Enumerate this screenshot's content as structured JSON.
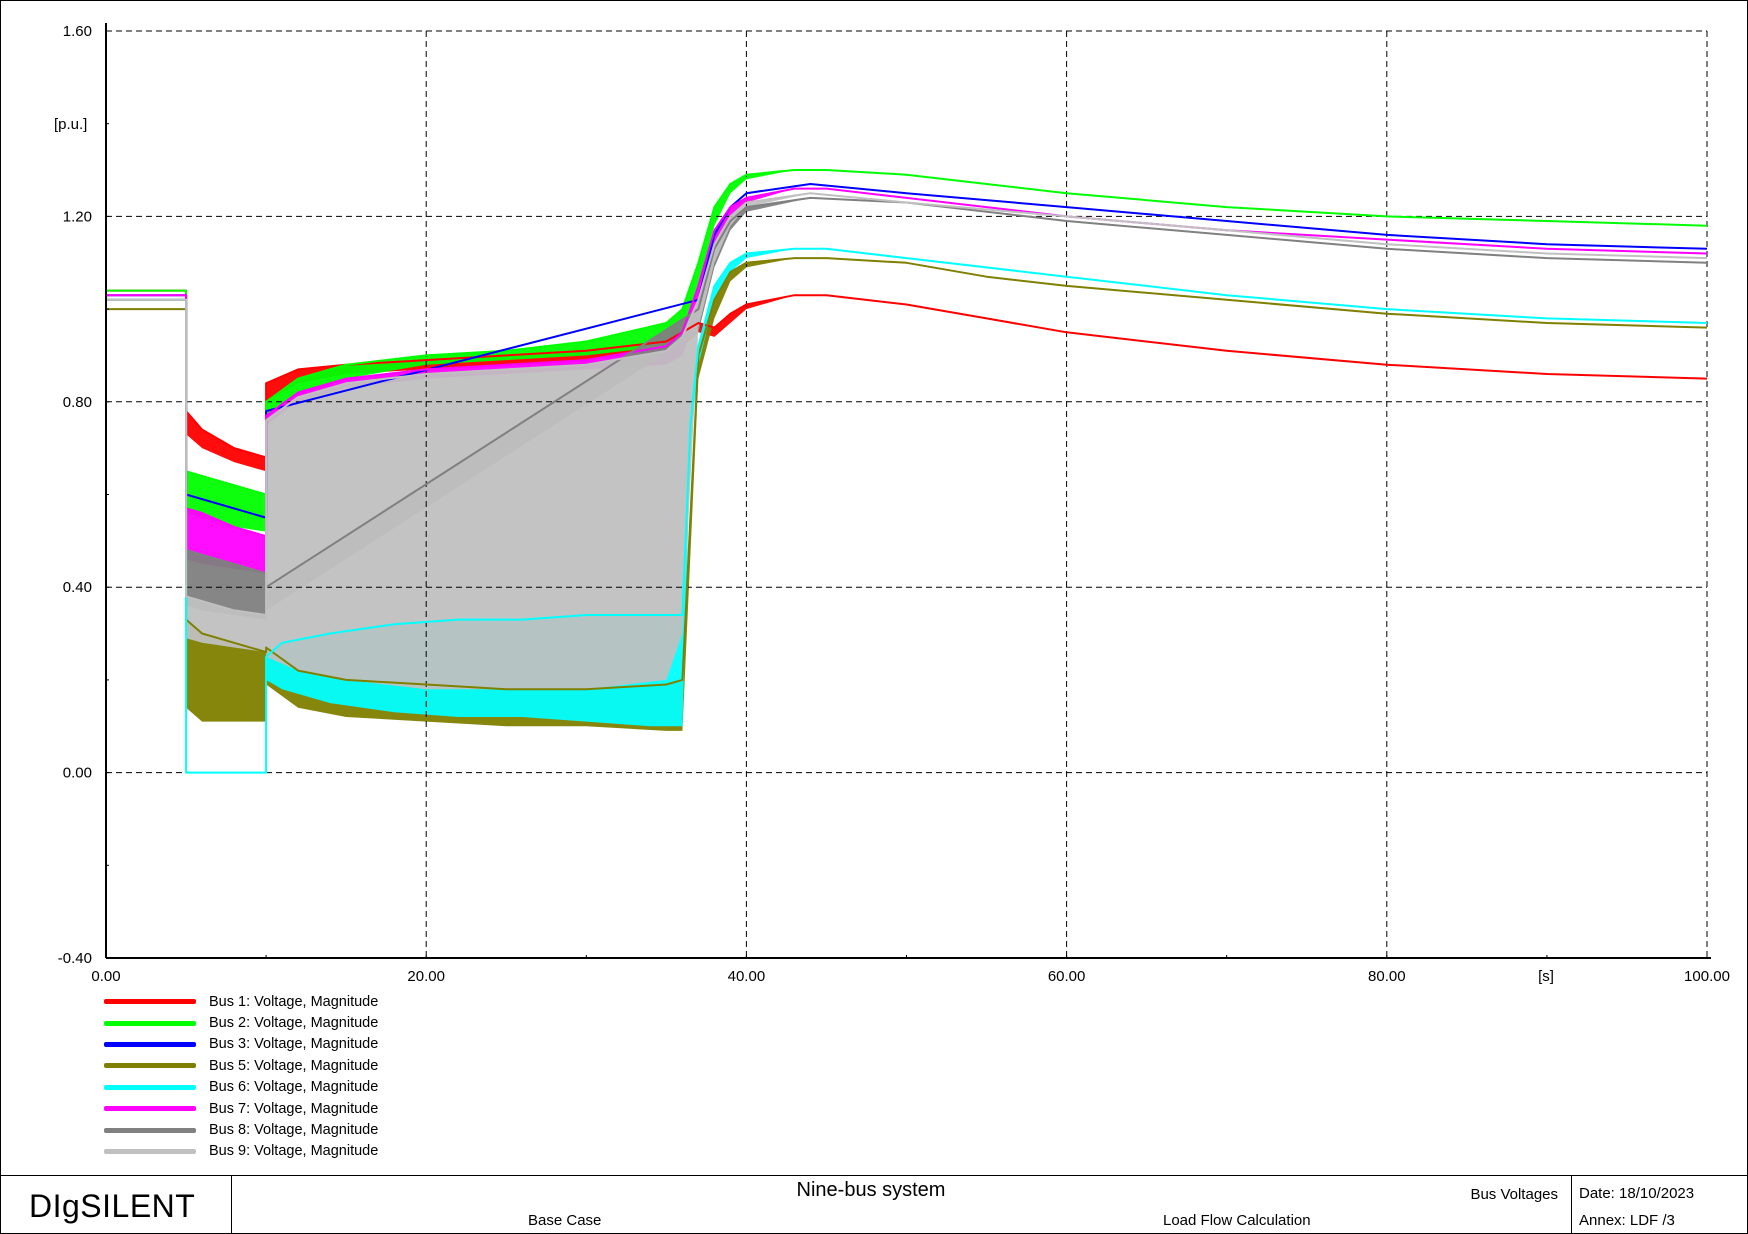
{
  "chart_data": {
    "type": "line",
    "ylabel": "[p.u.]",
    "xlabel": "[s]",
    "xlim": [
      0,
      100
    ],
    "ylim": [
      -0.4,
      1.6
    ],
    "x_ticks": [
      "0.00",
      "20.00",
      "40.00",
      "60.00",
      "80.00",
      "100.00"
    ],
    "y_ticks": [
      "-0.40",
      "0.00",
      "0.40",
      "0.80",
      "1.20",
      "1.60"
    ],
    "grid": true,
    "legend_position": "bottom-left",
    "series": [
      {
        "name": "Bus 1: Voltage, Magnitude",
        "color": "#ff0000",
        "x": [
          0,
          5,
          5,
          6,
          8,
          10,
          10,
          12,
          15,
          20,
          25,
          30,
          35,
          36,
          37,
          38,
          39,
          40,
          43,
          45,
          50,
          55,
          60,
          70,
          80,
          90,
          100
        ],
        "y": [
          1.04,
          1.04,
          0.78,
          0.74,
          0.7,
          0.68,
          0.84,
          0.87,
          0.88,
          0.89,
          0.9,
          0.91,
          0.93,
          0.95,
          0.97,
          0.96,
          0.99,
          1.01,
          1.03,
          1.03,
          1.01,
          0.98,
          0.95,
          0.91,
          0.88,
          0.86,
          0.85
        ],
        "band_lower": [
          1.04,
          1.04,
          0.73,
          0.7,
          0.67,
          0.65,
          0.8,
          0.84,
          0.86,
          0.87,
          0.88,
          0.89,
          0.91,
          0.92,
          0.95,
          0.94,
          0.97,
          1.0,
          1.03,
          1.03,
          1.01,
          0.98,
          0.95,
          0.91,
          0.88,
          0.86,
          0.85
        ]
      },
      {
        "name": "Bus 2: Voltage, Magnitude",
        "color": "#00ff00",
        "x": [
          0,
          5,
          5,
          6,
          8,
          10,
          10,
          12,
          15,
          20,
          25,
          30,
          35,
          36,
          37,
          38,
          39,
          40,
          43,
          45,
          50,
          55,
          60,
          70,
          80,
          90,
          100
        ],
        "y": [
          1.04,
          1.04,
          0.65,
          0.64,
          0.62,
          0.6,
          0.8,
          0.85,
          0.88,
          0.9,
          0.91,
          0.93,
          0.97,
          1.0,
          1.1,
          1.22,
          1.27,
          1.29,
          1.3,
          1.3,
          1.29,
          1.27,
          1.25,
          1.22,
          1.2,
          1.19,
          1.18
        ],
        "band_lower": [
          1.04,
          1.04,
          0.56,
          0.55,
          0.53,
          0.52,
          0.77,
          0.82,
          0.85,
          0.88,
          0.89,
          0.9,
          0.92,
          0.94,
          1.05,
          1.18,
          1.25,
          1.28,
          1.3,
          1.3,
          1.29,
          1.27,
          1.25,
          1.22,
          1.2,
          1.19,
          1.18
        ]
      },
      {
        "name": "Bus 3: Voltage, Magnitude",
        "color": "#0000ff",
        "x": [
          0,
          5,
          5,
          10,
          10,
          37,
          38,
          39,
          40,
          44,
          50,
          60,
          70,
          80,
          90,
          100
        ],
        "y": [
          1.03,
          1.03,
          0.6,
          0.55,
          0.78,
          1.02,
          1.16,
          1.22,
          1.25,
          1.27,
          1.25,
          1.22,
          1.19,
          1.16,
          1.14,
          1.13
        ]
      },
      {
        "name": "Bus 5: Voltage, Magnitude",
        "color": "#808000",
        "x": [
          0,
          5,
          5,
          6,
          8,
          10,
          10,
          12,
          15,
          20,
          25,
          30,
          35,
          36,
          37,
          38,
          39,
          40,
          43,
          45,
          50,
          55,
          60,
          70,
          80,
          90,
          100
        ],
        "y": [
          1.0,
          1.0,
          0.33,
          0.3,
          0.28,
          0.26,
          0.27,
          0.22,
          0.2,
          0.19,
          0.18,
          0.18,
          0.19,
          0.2,
          0.9,
          1.02,
          1.08,
          1.1,
          1.11,
          1.11,
          1.1,
          1.07,
          1.05,
          1.02,
          0.99,
          0.97,
          0.96
        ],
        "band_lower": [
          1.0,
          1.0,
          0.14,
          0.11,
          0.11,
          0.11,
          0.19,
          0.14,
          0.12,
          0.11,
          0.1,
          0.1,
          0.09,
          0.09,
          0.85,
          0.98,
          1.06,
          1.09,
          1.11,
          1.11,
          1.1,
          1.07,
          1.05,
          1.02,
          0.99,
          0.97,
          0.96
        ]
      },
      {
        "name": "Bus 6: Voltage, Magnitude",
        "color": "#00ffff",
        "x": [
          0,
          5,
          5,
          10,
          10,
          11,
          14,
          18,
          22,
          26,
          30,
          34,
          36,
          36.5,
          37,
          38,
          39,
          40,
          43,
          45,
          50,
          60,
          70,
          80,
          90,
          100
        ],
        "y": [
          1.02,
          1.02,
          0.0,
          0.0,
          0.25,
          0.28,
          0.3,
          0.32,
          0.33,
          0.33,
          0.34,
          0.34,
          0.34,
          0.75,
          0.92,
          1.05,
          1.1,
          1.12,
          1.13,
          1.13,
          1.11,
          1.07,
          1.03,
          1.0,
          0.98,
          0.97
        ],
        "band_lower": [
          1.02,
          1.02,
          0.0,
          0.0,
          0.2,
          0.18,
          0.15,
          0.13,
          0.12,
          0.12,
          0.11,
          0.1,
          0.1,
          0.7,
          0.88,
          1.02,
          1.08,
          1.11,
          1.13,
          1.13,
          1.11,
          1.07,
          1.03,
          1.0,
          0.98,
          0.97
        ]
      },
      {
        "name": "Bus 7: Voltage, Magnitude",
        "color": "#ff00ff",
        "x": [
          0,
          5,
          5,
          6,
          8,
          10,
          10,
          12,
          15,
          20,
          25,
          30,
          35,
          36,
          37,
          38,
          39,
          40,
          43,
          45,
          50,
          55,
          60,
          70,
          80,
          90,
          100
        ],
        "y": [
          1.03,
          1.03,
          0.57,
          0.56,
          0.53,
          0.51,
          0.77,
          0.82,
          0.85,
          0.87,
          0.88,
          0.89,
          0.92,
          0.95,
          1.05,
          1.17,
          1.22,
          1.24,
          1.26,
          1.26,
          1.24,
          1.22,
          1.2,
          1.17,
          1.15,
          1.13,
          1.12
        ],
        "band_lower": [
          1.03,
          1.03,
          0.46,
          0.45,
          0.44,
          0.43,
          0.75,
          0.8,
          0.83,
          0.85,
          0.86,
          0.87,
          0.88,
          0.9,
          1.0,
          1.13,
          1.2,
          1.23,
          1.26,
          1.26,
          1.24,
          1.22,
          1.2,
          1.17,
          1.15,
          1.13,
          1.12
        ]
      },
      {
        "name": "Bus 8: Voltage, Magnitude",
        "color": "#808080",
        "x": [
          0,
          5,
          5,
          6,
          8,
          10,
          10,
          37,
          38,
          39,
          40,
          44,
          50,
          60,
          70,
          80,
          90,
          100
        ],
        "y": [
          1.02,
          1.02,
          0.48,
          0.47,
          0.45,
          0.43,
          0.4,
          1.0,
          1.13,
          1.19,
          1.22,
          1.24,
          1.23,
          1.19,
          1.16,
          1.13,
          1.11,
          1.1
        ],
        "band_lower": [
          1.02,
          1.02,
          0.36,
          0.35,
          0.34,
          0.33,
          0.35,
          0.95,
          1.09,
          1.17,
          1.21,
          1.24,
          1.23,
          1.19,
          1.16,
          1.13,
          1.11,
          1.1
        ]
      },
      {
        "name": "Bus 9: Voltage, Magnitude",
        "color": "#c0c0c0",
        "x": [
          0,
          5,
          5,
          6,
          8,
          10,
          10,
          12,
          15,
          20,
          25,
          30,
          35,
          36,
          37,
          38,
          39,
          40,
          44,
          50,
          60,
          70,
          80,
          90,
          100
        ],
        "y": [
          1.02,
          1.02,
          0.38,
          0.37,
          0.35,
          0.34,
          0.76,
          0.81,
          0.84,
          0.86,
          0.87,
          0.88,
          0.91,
          0.94,
          1.02,
          1.14,
          1.2,
          1.23,
          1.25,
          1.23,
          1.2,
          1.17,
          1.14,
          1.12,
          1.11
        ],
        "band_lower": [
          1.02,
          1.02,
          0.29,
          0.28,
          0.27,
          0.26,
          0.25,
          0.22,
          0.2,
          0.18,
          0.18,
          0.18,
          0.2,
          0.3,
          0.96,
          1.1,
          1.18,
          1.22,
          1.25,
          1.23,
          1.2,
          1.17,
          1.14,
          1.12,
          1.11
        ]
      }
    ]
  },
  "footer": {
    "logo": "DIgSILENT",
    "project_title": "Nine-bus system",
    "study_case": "Base Case",
    "calculation": "Load Flow Calculation",
    "page_title": "Bus Voltages",
    "date": "Date: 18/10/2023",
    "annex": "Annex: LDF /3"
  }
}
